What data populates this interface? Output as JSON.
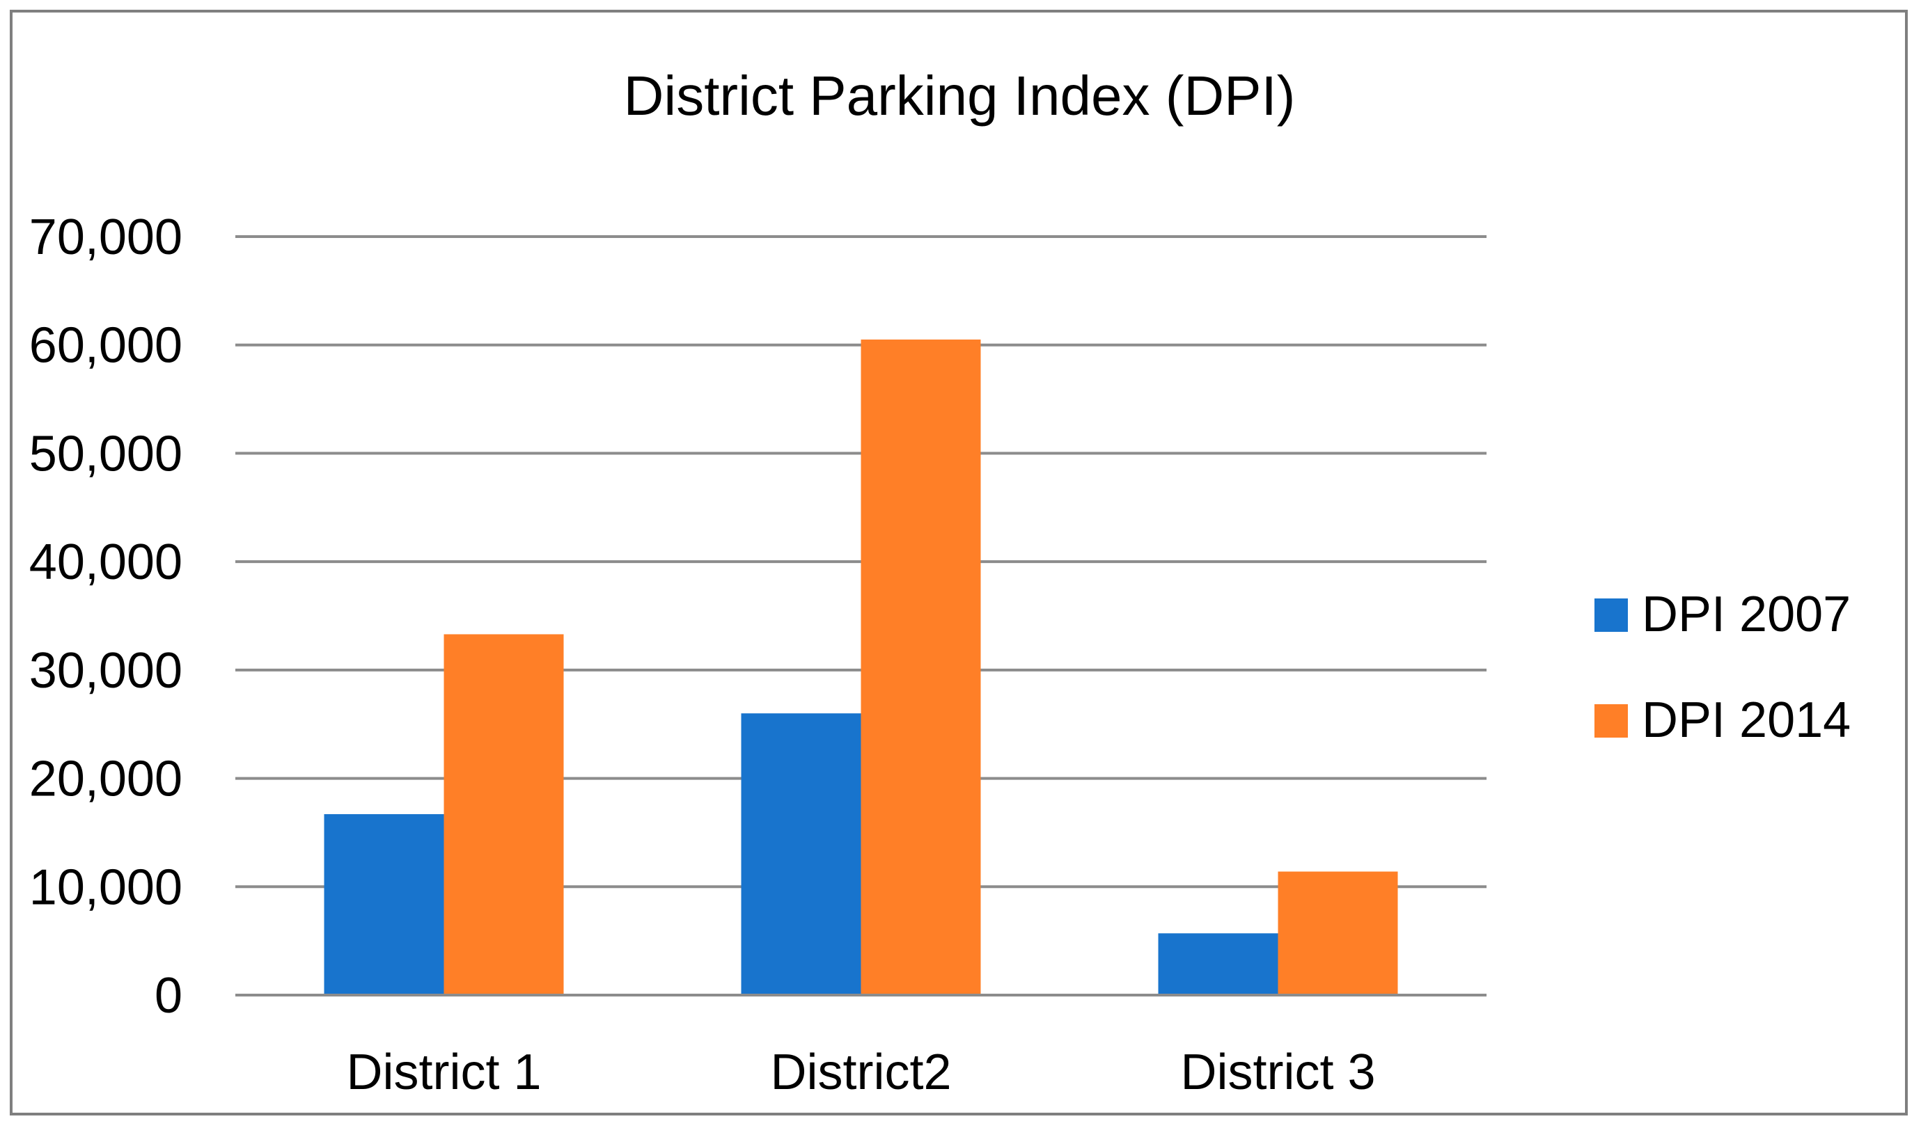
{
  "chart_data": {
    "type": "bar",
    "title": "District Parking Index (DPI)",
    "xlabel": "",
    "ylabel": "",
    "categories": [
      "District 1",
      "District2",
      "District 3"
    ],
    "series": [
      {
        "name": "DPI 2007",
        "values": [
          16700,
          26000,
          5700
        ],
        "color": "#1874CD"
      },
      {
        "name": "DPI 2014",
        "values": [
          33300,
          60500,
          11400
        ],
        "color": "#FF7F27"
      }
    ],
    "ylim": [
      0,
      70000
    ],
    "yticks": [
      "0",
      "10,000",
      "20,000",
      "30,000",
      "40,000",
      "50,000",
      "60,000",
      "70,000"
    ],
    "grid": true,
    "legend_position": "right"
  }
}
